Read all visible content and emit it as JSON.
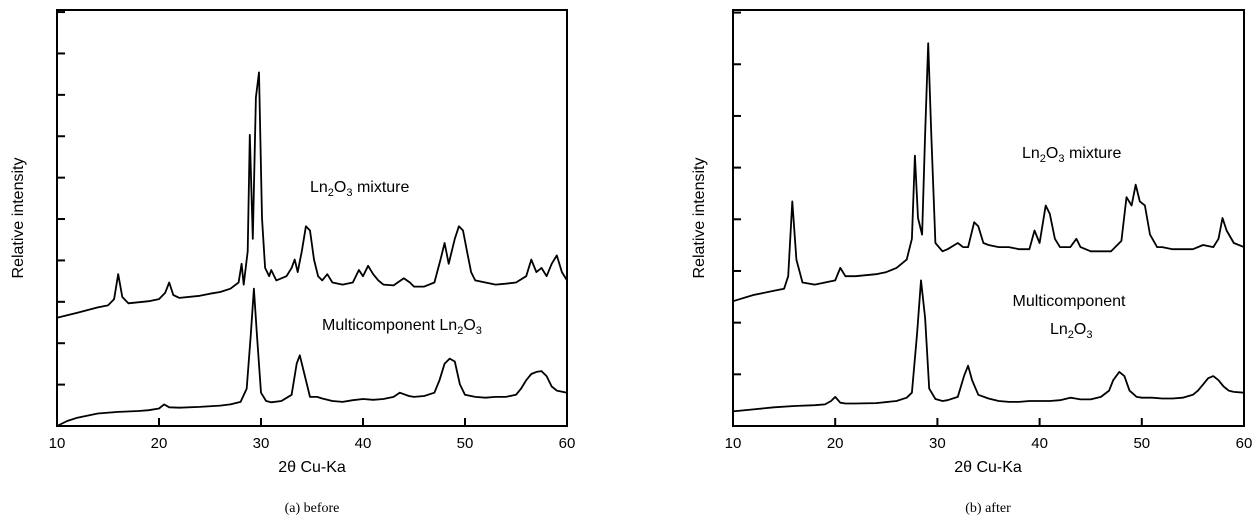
{
  "chart_data": [
    {
      "type": "line",
      "caption": "(a) before",
      "xlabel": "2θ Cu-Ka",
      "ylabel": "Relative intensity",
      "xlim": [
        10,
        60
      ],
      "xticks": [
        10,
        20,
        30,
        40,
        50,
        60
      ],
      "y_tick_count": 10,
      "series": [
        {
          "label_main": "Ln",
          "label_sub1": "2",
          "label_mid": "O",
          "label_sub2": "3",
          "label_tail": " mixture",
          "points": [
            [
              10,
              0.26
            ],
            [
              12,
              0.272
            ],
            [
              14,
              0.285
            ],
            [
              15,
              0.29
            ],
            [
              15.6,
              0.305
            ],
            [
              16,
              0.365
            ],
            [
              16.4,
              0.31
            ],
            [
              17,
              0.295
            ],
            [
              19,
              0.3
            ],
            [
              20,
              0.305
            ],
            [
              20.6,
              0.32
            ],
            [
              21,
              0.345
            ],
            [
              21.4,
              0.315
            ],
            [
              22,
              0.308
            ],
            [
              24,
              0.313
            ],
            [
              25,
              0.318
            ],
            [
              26,
              0.322
            ],
            [
              27,
              0.33
            ],
            [
              27.8,
              0.345
            ],
            [
              28.1,
              0.39
            ],
            [
              28.3,
              0.34
            ],
            [
              28.7,
              0.42
            ],
            [
              28.9,
              0.7
            ],
            [
              29.2,
              0.45
            ],
            [
              29.5,
              0.79
            ],
            [
              29.8,
              0.85
            ],
            [
              30.1,
              0.5
            ],
            [
              30.4,
              0.38
            ],
            [
              30.8,
              0.36
            ],
            [
              31,
              0.375
            ],
            [
              31.5,
              0.35
            ],
            [
              32,
              0.355
            ],
            [
              32.5,
              0.36
            ],
            [
              33,
              0.38
            ],
            [
              33.3,
              0.4
            ],
            [
              33.6,
              0.37
            ],
            [
              34,
              0.42
            ],
            [
              34.4,
              0.48
            ],
            [
              34.8,
              0.47
            ],
            [
              35.2,
              0.4
            ],
            [
              35.6,
              0.36
            ],
            [
              36,
              0.35
            ],
            [
              36.5,
              0.365
            ],
            [
              37,
              0.345
            ],
            [
              38,
              0.34
            ],
            [
              39,
              0.345
            ],
            [
              39.6,
              0.375
            ],
            [
              40,
              0.36
            ],
            [
              40.5,
              0.385
            ],
            [
              41,
              0.365
            ],
            [
              41.5,
              0.35
            ],
            [
              42,
              0.34
            ],
            [
              43,
              0.338
            ],
            [
              44,
              0.355
            ],
            [
              44.6,
              0.345
            ],
            [
              45,
              0.335
            ],
            [
              46,
              0.335
            ],
            [
              47,
              0.345
            ],
            [
              47.6,
              0.4
            ],
            [
              48,
              0.44
            ],
            [
              48.4,
              0.39
            ],
            [
              49,
              0.45
            ],
            [
              49.4,
              0.48
            ],
            [
              49.8,
              0.47
            ],
            [
              50.2,
              0.42
            ],
            [
              50.6,
              0.37
            ],
            [
              51,
              0.35
            ],
            [
              52,
              0.345
            ],
            [
              53,
              0.34
            ],
            [
              54,
              0.342
            ],
            [
              55,
              0.345
            ],
            [
              56,
              0.36
            ],
            [
              56.5,
              0.4
            ],
            [
              57,
              0.37
            ],
            [
              57.5,
              0.38
            ],
            [
              58,
              0.36
            ],
            [
              58.5,
              0.39
            ],
            [
              59,
              0.41
            ],
            [
              59.5,
              0.37
            ],
            [
              60,
              0.35
            ]
          ]
        },
        {
          "label_main": "Multicomponent Ln",
          "label_sub1": "2",
          "label_mid": "O",
          "label_sub2": "3",
          "label_tail": "",
          "points": [
            [
              10,
              0.0
            ],
            [
              11,
              0.012
            ],
            [
              12,
              0.02
            ],
            [
              14,
              0.03
            ],
            [
              16,
              0.034
            ],
            [
              18,
              0.036
            ],
            [
              19,
              0.038
            ],
            [
              20,
              0.042
            ],
            [
              20.5,
              0.052
            ],
            [
              21,
              0.045
            ],
            [
              22,
              0.044
            ],
            [
              24,
              0.046
            ],
            [
              26,
              0.049
            ],
            [
              27,
              0.052
            ],
            [
              28,
              0.058
            ],
            [
              28.6,
              0.09
            ],
            [
              29.0,
              0.22
            ],
            [
              29.3,
              0.33
            ],
            [
              29.6,
              0.22
            ],
            [
              30.0,
              0.08
            ],
            [
              30.5,
              0.06
            ],
            [
              31,
              0.057
            ],
            [
              32,
              0.06
            ],
            [
              33,
              0.075
            ],
            [
              33.5,
              0.15
            ],
            [
              33.8,
              0.17
            ],
            [
              34.3,
              0.12
            ],
            [
              34.8,
              0.07
            ],
            [
              35.5,
              0.07
            ],
            [
              36,
              0.066
            ],
            [
              37,
              0.06
            ],
            [
              38,
              0.058
            ],
            [
              39,
              0.062
            ],
            [
              40,
              0.065
            ],
            [
              41,
              0.063
            ],
            [
              42,
              0.065
            ],
            [
              43,
              0.07
            ],
            [
              43.6,
              0.08
            ],
            [
              44.5,
              0.072
            ],
            [
              45,
              0.07
            ],
            [
              46,
              0.072
            ],
            [
              47,
              0.08
            ],
            [
              47.5,
              0.11
            ],
            [
              48,
              0.15
            ],
            [
              48.5,
              0.162
            ],
            [
              49,
              0.155
            ],
            [
              49.5,
              0.1
            ],
            [
              50,
              0.075
            ],
            [
              51,
              0.07
            ],
            [
              52,
              0.068
            ],
            [
              53,
              0.07
            ],
            [
              54,
              0.07
            ],
            [
              55,
              0.075
            ],
            [
              55.5,
              0.09
            ],
            [
              56,
              0.11
            ],
            [
              56.5,
              0.125
            ],
            [
              57,
              0.13
            ],
            [
              57.5,
              0.132
            ],
            [
              58,
              0.12
            ],
            [
              58.5,
              0.095
            ],
            [
              59,
              0.085
            ],
            [
              60,
              0.08
            ]
          ]
        }
      ]
    },
    {
      "type": "line",
      "caption": "(b) after",
      "xlabel": "2θ Cu-Ka",
      "ylabel": "Relative intensity",
      "xlim": [
        10,
        60
      ],
      "xticks": [
        10,
        20,
        30,
        40,
        50,
        60
      ],
      "y_tick_count": 8,
      "series": [
        {
          "label_main": "Ln",
          "label_sub1": "2",
          "label_mid": "O",
          "label_sub2": "3",
          "label_tail": " mixture",
          "points": [
            [
              10,
              0.3
            ],
            [
              12,
              0.315
            ],
            [
              14,
              0.325
            ],
            [
              15,
              0.33
            ],
            [
              15.4,
              0.36
            ],
            [
              15.8,
              0.54
            ],
            [
              16.2,
              0.4
            ],
            [
              16.8,
              0.345
            ],
            [
              18,
              0.34
            ],
            [
              19,
              0.345
            ],
            [
              20,
              0.35
            ],
            [
              20.5,
              0.38
            ],
            [
              21,
              0.36
            ],
            [
              22,
              0.36
            ],
            [
              24,
              0.365
            ],
            [
              25,
              0.37
            ],
            [
              26,
              0.38
            ],
            [
              27,
              0.4
            ],
            [
              27.5,
              0.45
            ],
            [
              27.8,
              0.65
            ],
            [
              28.1,
              0.5
            ],
            [
              28.5,
              0.46
            ],
            [
              28.8,
              0.7
            ],
            [
              29.1,
              0.92
            ],
            [
              29.4,
              0.7
            ],
            [
              29.8,
              0.44
            ],
            [
              30.5,
              0.42
            ],
            [
              31,
              0.425
            ],
            [
              32,
              0.44
            ],
            [
              32.5,
              0.43
            ],
            [
              33,
              0.43
            ],
            [
              33.6,
              0.49
            ],
            [
              34,
              0.48
            ],
            [
              34.5,
              0.44
            ],
            [
              35,
              0.435
            ],
            [
              36,
              0.43
            ],
            [
              37,
              0.43
            ],
            [
              38,
              0.425
            ],
            [
              39,
              0.425
            ],
            [
              39.5,
              0.47
            ],
            [
              40,
              0.44
            ],
            [
              40.6,
              0.53
            ],
            [
              41,
              0.51
            ],
            [
              41.5,
              0.45
            ],
            [
              42,
              0.43
            ],
            [
              43,
              0.43
            ],
            [
              43.6,
              0.45
            ],
            [
              44,
              0.43
            ],
            [
              45,
              0.42
            ],
            [
              46,
              0.42
            ],
            [
              47,
              0.42
            ],
            [
              48,
              0.445
            ],
            [
              48.5,
              0.55
            ],
            [
              49,
              0.53
            ],
            [
              49.4,
              0.58
            ],
            [
              49.8,
              0.54
            ],
            [
              50.3,
              0.53
            ],
            [
              50.8,
              0.46
            ],
            [
              51.5,
              0.43
            ],
            [
              52,
              0.43
            ],
            [
              53,
              0.425
            ],
            [
              54,
              0.425
            ],
            [
              55,
              0.425
            ],
            [
              56,
              0.435
            ],
            [
              57,
              0.43
            ],
            [
              57.5,
              0.45
            ],
            [
              57.9,
              0.5
            ],
            [
              58.3,
              0.47
            ],
            [
              59,
              0.44
            ],
            [
              60,
              0.43
            ]
          ]
        },
        {
          "label_main": "Multicomponent",
          "label_sub1": "",
          "label_mid": "",
          "label_sub2": "",
          "label_tail": "",
          "line2_main": "Ln",
          "line2_sub1": "2",
          "line2_mid": "O",
          "line2_sub2": "3",
          "points": [
            [
              10,
              0.035
            ],
            [
              12,
              0.04
            ],
            [
              14,
              0.045
            ],
            [
              16,
              0.048
            ],
            [
              18,
              0.05
            ],
            [
              19,
              0.052
            ],
            [
              19.6,
              0.06
            ],
            [
              20,
              0.07
            ],
            [
              20.5,
              0.056
            ],
            [
              21,
              0.054
            ],
            [
              22,
              0.054
            ],
            [
              24,
              0.055
            ],
            [
              26,
              0.06
            ],
            [
              27,
              0.068
            ],
            [
              27.5,
              0.08
            ],
            [
              28,
              0.22
            ],
            [
              28.4,
              0.35
            ],
            [
              28.8,
              0.26
            ],
            [
              29.2,
              0.09
            ],
            [
              29.8,
              0.065
            ],
            [
              30.5,
              0.06
            ],
            [
              31,
              0.062
            ],
            [
              32,
              0.07
            ],
            [
              32.6,
              0.12
            ],
            [
              33,
              0.145
            ],
            [
              33.4,
              0.11
            ],
            [
              34,
              0.075
            ],
            [
              35,
              0.066
            ],
            [
              36,
              0.06
            ],
            [
              37,
              0.058
            ],
            [
              38,
              0.058
            ],
            [
              39,
              0.06
            ],
            [
              40,
              0.06
            ],
            [
              41,
              0.06
            ],
            [
              42,
              0.062
            ],
            [
              43,
              0.068
            ],
            [
              43.5,
              0.066
            ],
            [
              44,
              0.064
            ],
            [
              45,
              0.064
            ],
            [
              46,
              0.07
            ],
            [
              46.8,
              0.085
            ],
            [
              47.2,
              0.11
            ],
            [
              47.8,
              0.13
            ],
            [
              48.3,
              0.12
            ],
            [
              48.8,
              0.085
            ],
            [
              49.5,
              0.07
            ],
            [
              50,
              0.068
            ],
            [
              51,
              0.068
            ],
            [
              52,
              0.066
            ],
            [
              53,
              0.066
            ],
            [
              54,
              0.068
            ],
            [
              55,
              0.075
            ],
            [
              55.5,
              0.085
            ],
            [
              56,
              0.1
            ],
            [
              56.5,
              0.115
            ],
            [
              57,
              0.12
            ],
            [
              57.5,
              0.11
            ],
            [
              58,
              0.095
            ],
            [
              58.5,
              0.085
            ],
            [
              59,
              0.082
            ],
            [
              60,
              0.08
            ]
          ]
        }
      ]
    }
  ]
}
